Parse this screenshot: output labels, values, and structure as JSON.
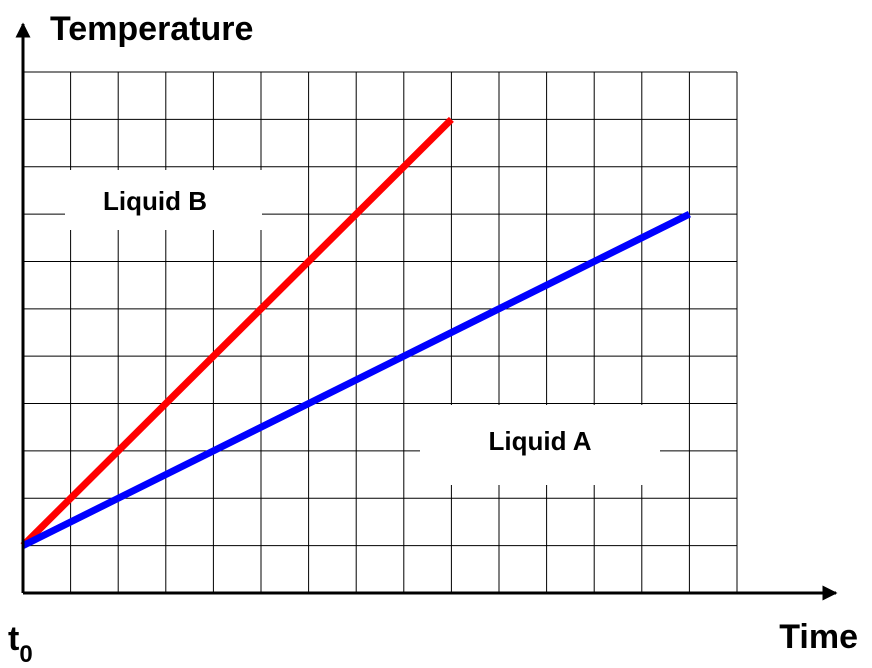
{
  "chart_data": {
    "type": "line",
    "y_axis_label": "Temperature",
    "x_axis_label": "Time",
    "x_origin_label": {
      "base": "t",
      "sub": "0"
    },
    "xlim": [
      0,
      15
    ],
    "ylim": [
      0,
      11
    ],
    "xticks": [
      0,
      1,
      2,
      3,
      4,
      5,
      6,
      7,
      8,
      9,
      10,
      11,
      12,
      13,
      14,
      15
    ],
    "yticks": [
      0,
      1,
      2,
      3,
      4,
      5,
      6,
      7,
      8,
      9,
      10,
      11
    ],
    "grid": true,
    "series": [
      {
        "name": "Liquid B",
        "color": "#ff0000",
        "x": [
          0,
          9
        ],
        "values": [
          1,
          10
        ]
      },
      {
        "name": "Liquid A",
        "color": "#0000ff",
        "x": [
          0,
          14
        ],
        "values": [
          1,
          8
        ]
      }
    ]
  }
}
